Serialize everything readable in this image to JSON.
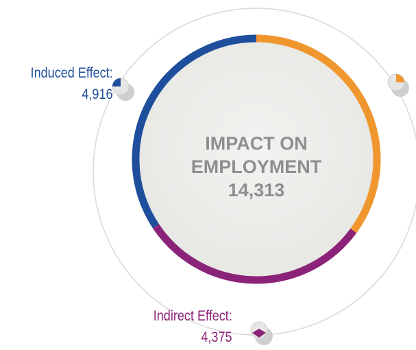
{
  "chart_data": {
    "type": "donut",
    "title": "IMPACT ON EMPLOYMENT",
    "total": {
      "value": 14313,
      "label": "14,313"
    },
    "series": [
      {
        "color": "#f0962e",
        "values": [
          5022
        ]
      },
      {
        "name": "Indirect Effect:",
        "color": "#8b2378",
        "values": [
          4375
        ],
        "value_labels": [
          "4,375"
        ]
      },
      {
        "name": "Induced Effect:",
        "color": "#1f4f9c",
        "values": [
          4916
        ],
        "value_labels": [
          "4,916"
        ]
      }
    ]
  }
}
